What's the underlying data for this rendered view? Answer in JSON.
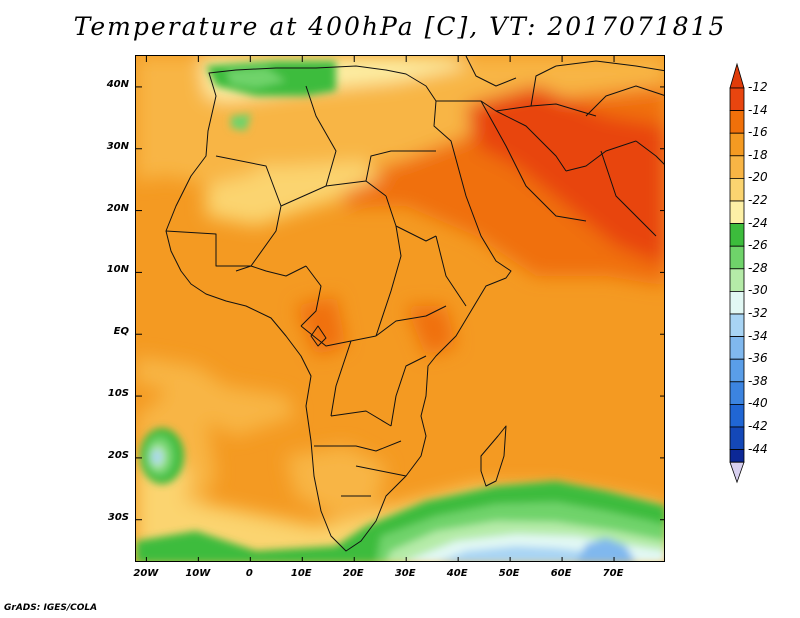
{
  "title": "Temperature at 400hPa [C], VT: 2017071815",
  "footer": "GrADS: IGES/COLA",
  "map": {
    "lon_range": [
      -22,
      80
    ],
    "lat_range": [
      -37,
      45
    ],
    "lon_ticks": [
      {
        "lon": -20,
        "label": "20W"
      },
      {
        "lon": -10,
        "label": "10W"
      },
      {
        "lon": 0,
        "label": "0"
      },
      {
        "lon": 10,
        "label": "10E"
      },
      {
        "lon": 20,
        "label": "20E"
      },
      {
        "lon": 30,
        "label": "30E"
      },
      {
        "lon": 40,
        "label": "40E"
      },
      {
        "lon": 50,
        "label": "50E"
      },
      {
        "lon": 60,
        "label": "60E"
      },
      {
        "lon": 70,
        "label": "70E"
      }
    ],
    "lat_ticks": [
      {
        "lat": 40,
        "label": "40N"
      },
      {
        "lat": 30,
        "label": "30N"
      },
      {
        "lat": 20,
        "label": "20N"
      },
      {
        "lat": 10,
        "label": "10N"
      },
      {
        "lat": 0,
        "label": "EQ"
      },
      {
        "lat": -10,
        "label": "10S"
      },
      {
        "lat": -20,
        "label": "20S"
      },
      {
        "lat": -30,
        "label": "30S"
      }
    ]
  },
  "colorbar": {
    "levels": [
      "-12",
      "-14",
      "-16",
      "-18",
      "-20",
      "-22",
      "-24",
      "-26",
      "-28",
      "-30",
      "-32",
      "-34",
      "-36",
      "-38",
      "-40",
      "-42",
      "-44"
    ],
    "colors": [
      "#e8450f",
      "#f0700a",
      "#f49a22",
      "#f8b545",
      "#fbd470",
      "#fdf0a6",
      "#3cbc3c",
      "#6fd36a",
      "#b5eba8",
      "#e2f8f4",
      "#a8d4f4",
      "#80b8ee",
      "#5a9ee8",
      "#3c84e0",
      "#2066d4",
      "#1448b8",
      "#0c2896"
    ],
    "top_color": "#e03c0a",
    "bottom_color": "#d8d0f0"
  }
}
